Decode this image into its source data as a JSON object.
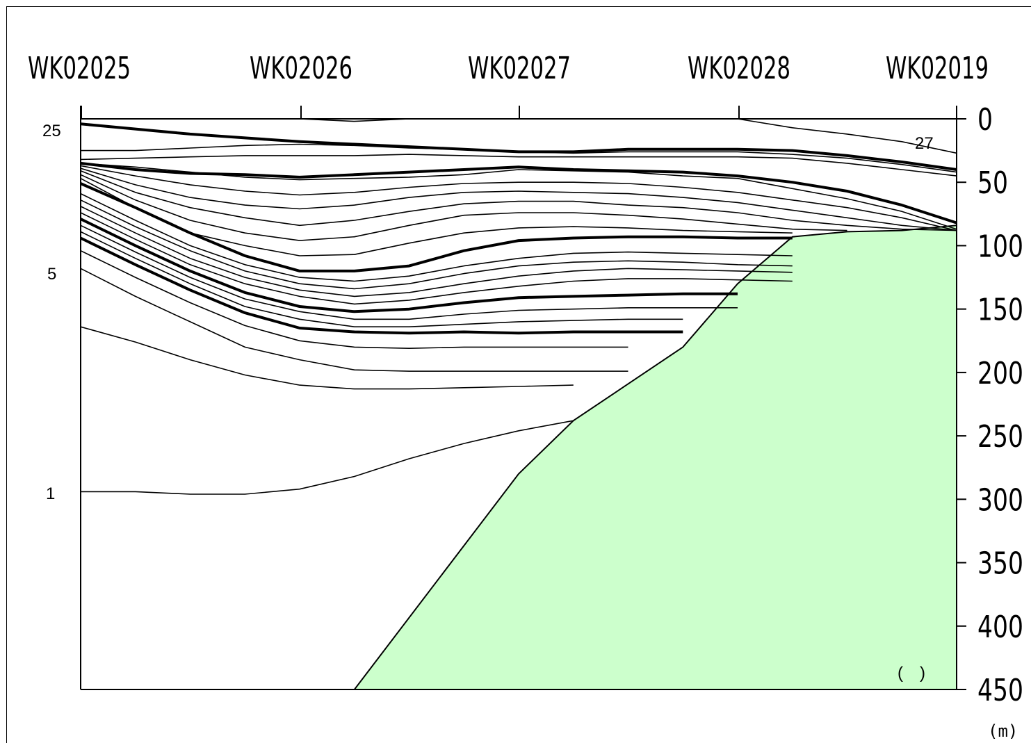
{
  "chart_data": {
    "type": "line",
    "stations": [
      "WK02025",
      "WK02026",
      "WK02027",
      "WK02028",
      "WK02019"
    ],
    "y_ticks": [
      "0",
      "50",
      "100",
      "150",
      "200",
      "250",
      "300",
      "350",
      "400",
      "450"
    ],
    "ylim": [
      0,
      450
    ],
    "y_unit": "(m)",
    "bottom_note": "(　)",
    "contour_labels": [
      {
        "text": "25",
        "depth": 3
      },
      {
        "text": "5",
        "depth": 120
      },
      {
        "text": "1",
        "depth": 294
      },
      {
        "text": "27",
        "depth": 14
      }
    ],
    "colors": {
      "seabed": "#ccffcc",
      "line": "#000000"
    },
    "x": [
      0,
      0.0625,
      0.125,
      0.1875,
      0.25,
      0.3125,
      0.375,
      0.4375,
      0.5,
      0.5625,
      0.625,
      0.6875,
      0.75,
      0.8125,
      0.875,
      0.9375,
      1.0
    ],
    "seabed": [
      [
        0.3125,
        450
      ],
      [
        0.5,
        280
      ],
      [
        0.5625,
        238
      ],
      [
        0.6875,
        180
      ],
      [
        0.75,
        130
      ],
      [
        0.8125,
        93
      ],
      [
        0.875,
        89
      ],
      [
        0.9375,
        88
      ],
      [
        1.0,
        84
      ]
    ],
    "contours": [
      {
        "bold": false,
        "depth": [
          0,
          null,
          null,
          null,
          0,
          2,
          0,
          null,
          null,
          null,
          null,
          null,
          0,
          7,
          12,
          18,
          27
        ]
      },
      {
        "bold": true,
        "depth": [
          4,
          8,
          12,
          15,
          18,
          20,
          22,
          24,
          26,
          26,
          24,
          24,
          24,
          25,
          29,
          34,
          40
        ]
      },
      {
        "bold": false,
        "depth": [
          25,
          25,
          23,
          21,
          20,
          21,
          23,
          24,
          26,
          27,
          26,
          26,
          26,
          28,
          31,
          36,
          42
        ]
      },
      {
        "bold": false,
        "depth": [
          32,
          31,
          30,
          29,
          29,
          29,
          28,
          29,
          30,
          30,
          30,
          30,
          30,
          31,
          35,
          40,
          45
        ]
      },
      {
        "bold": true,
        "depth": [
          35,
          40,
          43,
          44,
          46,
          44,
          42,
          40,
          38,
          40,
          41,
          42,
          45,
          50,
          57,
          68,
          82
        ]
      },
      {
        "bold": false,
        "depth": [
          35,
          38,
          42,
          46,
          48,
          47,
          46,
          44,
          40,
          41,
          42,
          45,
          47,
          55,
          63,
          73,
          87
        ]
      },
      {
        "bold": false,
        "depth": [
          37,
          45,
          52,
          57,
          60,
          58,
          54,
          51,
          50,
          50,
          51,
          54,
          58,
          64,
          70,
          78,
          88
        ]
      },
      {
        "bold": false,
        "depth": [
          39,
          52,
          62,
          68,
          71,
          68,
          62,
          58,
          57,
          58,
          59,
          62,
          66,
          72,
          78,
          84,
          88
        ]
      },
      {
        "bold": false,
        "depth": [
          41,
          58,
          70,
          78,
          84,
          80,
          73,
          67,
          65,
          65,
          68,
          70,
          74,
          80,
          84,
          87,
          88
        ]
      },
      {
        "bold": false,
        "depth": [
          44,
          64,
          80,
          90,
          96,
          93,
          84,
          76,
          74,
          74,
          76,
          79,
          83,
          87,
          88,
          null,
          null
        ]
      },
      {
        "bold": false,
        "depth": [
          47,
          70,
          90,
          100,
          108,
          107,
          98,
          90,
          86,
          85,
          86,
          88,
          89,
          90,
          null,
          null,
          null
        ]
      },
      {
        "bold": true,
        "depth": [
          51,
          70,
          90,
          108,
          120,
          120,
          116,
          104,
          96,
          94,
          93,
          93,
          94,
          94,
          null,
          null,
          null
        ]
      },
      {
        "bold": false,
        "depth": [
          59,
          80,
          100,
          115,
          125,
          128,
          124,
          116,
          110,
          106,
          105,
          106,
          107,
          108,
          null,
          null,
          null
        ]
      },
      {
        "bold": false,
        "depth": [
          64,
          85,
          104,
          120,
          130,
          134,
          130,
          122,
          116,
          113,
          112,
          113,
          115,
          116,
          null,
          null,
          null
        ]
      },
      {
        "bold": false,
        "depth": [
          69,
          90,
          110,
          125,
          135,
          140,
          137,
          130,
          124,
          120,
          118,
          119,
          120,
          121,
          null,
          null,
          null
        ]
      },
      {
        "bold": false,
        "depth": [
          74,
          95,
          115,
          130,
          140,
          146,
          143,
          137,
          132,
          128,
          126,
          126,
          127,
          128,
          null,
          null,
          null
        ]
      },
      {
        "bold": true,
        "depth": [
          79,
          100,
          120,
          137,
          148,
          152,
          150,
          145,
          141,
          140,
          139,
          138,
          138,
          null,
          null,
          null,
          null
        ]
      },
      {
        "bold": false,
        "depth": [
          84,
          105,
          125,
          142,
          152,
          158,
          158,
          154,
          151,
          150,
          149,
          149,
          149,
          null,
          null,
          null,
          null
        ]
      },
      {
        "bold": false,
        "depth": [
          89,
          110,
          130,
          148,
          158,
          164,
          164,
          162,
          160,
          159,
          158,
          158,
          null,
          null,
          null,
          null,
          null
        ]
      },
      {
        "bold": true,
        "depth": [
          94,
          115,
          135,
          153,
          165,
          168,
          169,
          168,
          169,
          168,
          168,
          168,
          null,
          null,
          null,
          null,
          null
        ]
      },
      {
        "bold": false,
        "depth": [
          104,
          125,
          145,
          163,
          175,
          180,
          181,
          180,
          180,
          180,
          180,
          null,
          null,
          null,
          null,
          null,
          null
        ]
      },
      {
        "bold": false,
        "depth": [
          118,
          140,
          160,
          180,
          190,
          198,
          199,
          199,
          199,
          199,
          199,
          null,
          null,
          null,
          null,
          null,
          null
        ]
      },
      {
        "bold": false,
        "depth": [
          164,
          176,
          190,
          202,
          210,
          213,
          213,
          212,
          211,
          210,
          null,
          null,
          null,
          null,
          null,
          null,
          null
        ]
      },
      {
        "bold": false,
        "depth": [
          294,
          294,
          296,
          296,
          292,
          282,
          268,
          256,
          246,
          238,
          null,
          null,
          null,
          null,
          null,
          null,
          null
        ]
      }
    ]
  }
}
